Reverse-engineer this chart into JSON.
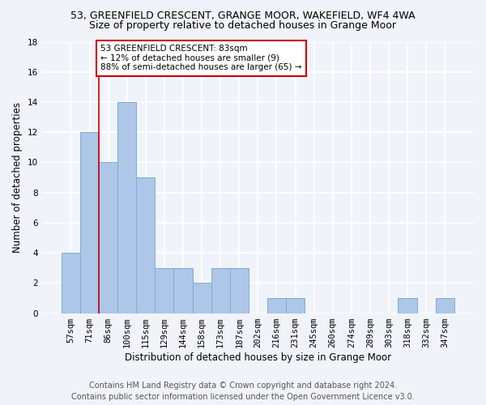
{
  "title": "53, GREENFIELD CRESCENT, GRANGE MOOR, WAKEFIELD, WF4 4WA",
  "subtitle": "Size of property relative to detached houses in Grange Moor",
  "xlabel": "Distribution of detached houses by size in Grange Moor",
  "ylabel": "Number of detached properties",
  "bin_labels": [
    "57sqm",
    "71sqm",
    "86sqm",
    "100sqm",
    "115sqm",
    "129sqm",
    "144sqm",
    "158sqm",
    "173sqm",
    "187sqm",
    "202sqm",
    "216sqm",
    "231sqm",
    "245sqm",
    "260sqm",
    "274sqm",
    "289sqm",
    "303sqm",
    "318sqm",
    "332sqm",
    "347sqm"
  ],
  "bar_values": [
    4,
    12,
    10,
    14,
    9,
    3,
    3,
    2,
    3,
    3,
    0,
    1,
    1,
    0,
    0,
    0,
    0,
    0,
    1,
    0,
    1
  ],
  "bar_color": "#aec6e8",
  "bar_edge_color": "#7aadd4",
  "vline_x": 1.5,
  "vline_color": "#cc0000",
  "annotation_text": "53 GREENFIELD CRESCENT: 83sqm\n← 12% of detached houses are smaller (9)\n88% of semi-detached houses are larger (65) →",
  "annotation_box_color": "#ffffff",
  "annotation_box_edge_color": "#cc0000",
  "ylim": [
    0,
    18
  ],
  "yticks": [
    0,
    2,
    4,
    6,
    8,
    10,
    12,
    14,
    16,
    18
  ],
  "footer": "Contains HM Land Registry data © Crown copyright and database right 2024.\nContains public sector information licensed under the Open Government Licence v3.0.",
  "background_color": "#f0f4fa",
  "plot_background_color": "#f0f4fa",
  "grid_color": "#ffffff",
  "title_fontsize": 9,
  "subtitle_fontsize": 9,
  "axis_label_fontsize": 8.5,
  "tick_fontsize": 7.5,
  "annotation_fontsize": 7.5,
  "footer_fontsize": 7
}
